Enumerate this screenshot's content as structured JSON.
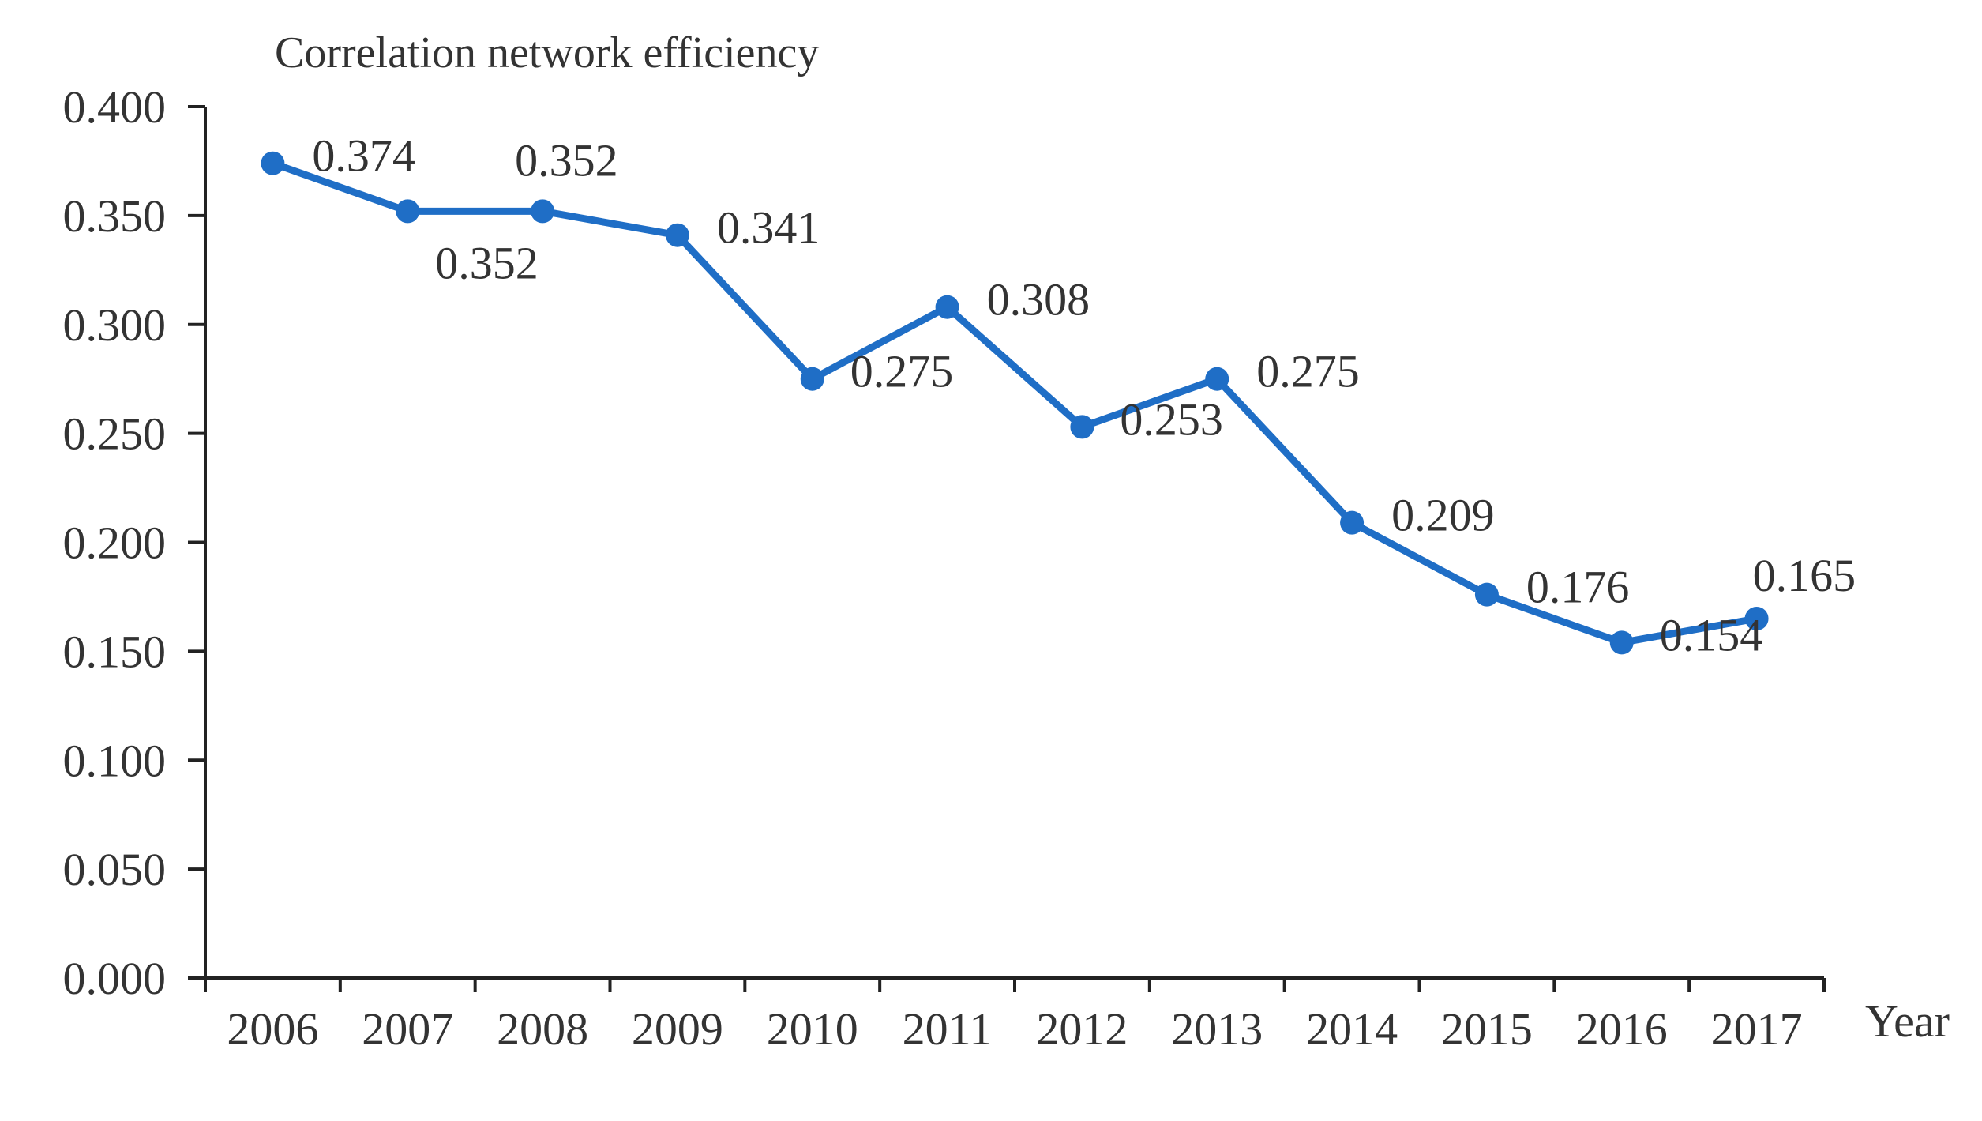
{
  "chart_data": {
    "type": "line",
    "title": "Correlation network efficiency",
    "xlabel": "Year",
    "ylabel": "Correlation network efficiency",
    "ylim": [
      0,
      0.4
    ],
    "y_ticks": [
      "0.000",
      "0.050",
      "0.100",
      "0.150",
      "0.200",
      "0.250",
      "0.300",
      "0.350",
      "0.400"
    ],
    "y_tick_values": [
      0,
      0.05,
      0.1,
      0.15,
      0.2,
      0.25,
      0.3,
      0.35,
      0.4
    ],
    "categories": [
      "2006",
      "2007",
      "2008",
      "2009",
      "2010",
      "2011",
      "2012",
      "2013",
      "2014",
      "2015",
      "2016",
      "2017"
    ],
    "series": [
      {
        "name": "Correlation network efficiency",
        "color": "#1f6ec6",
        "values": [
          0.374,
          0.352,
          0.352,
          0.341,
          0.275,
          0.308,
          0.253,
          0.275,
          0.209,
          0.176,
          0.154,
          0.165
        ],
        "labels": [
          "0.374",
          "0.352",
          "0.352",
          "0.341",
          "0.275",
          "0.308",
          "0.253",
          "0.275",
          "0.209",
          "0.176",
          "0.154",
          "0.165"
        ],
        "label_positions": [
          "right",
          "below",
          "above",
          "right",
          "below-right",
          "right",
          "below-right",
          "right",
          "right",
          "right",
          "below-right",
          "above-right"
        ]
      }
    ],
    "grid": false,
    "legend": "none"
  }
}
